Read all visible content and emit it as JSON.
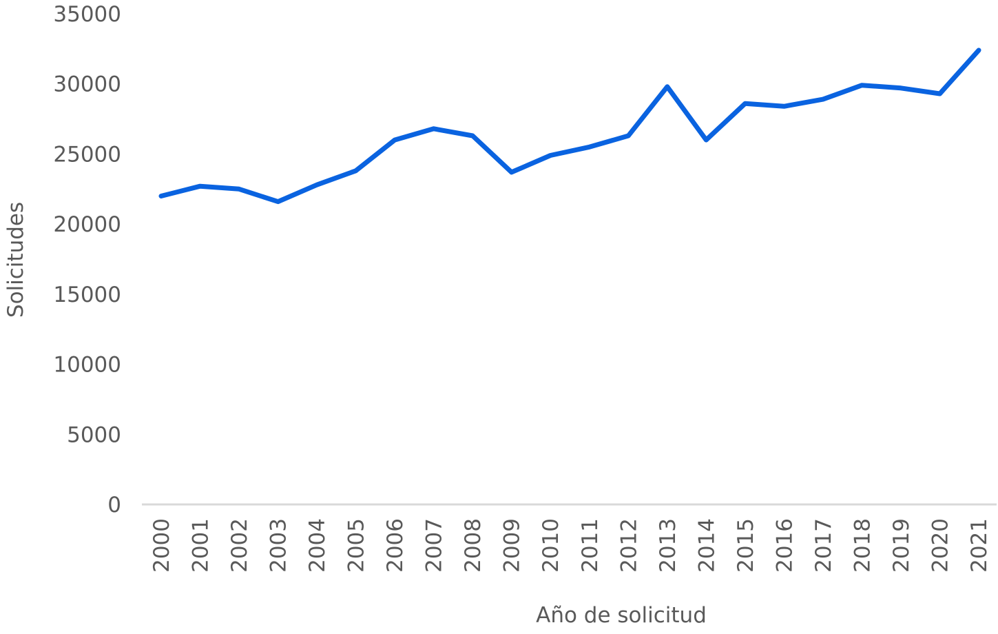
{
  "chart_data": {
    "type": "line",
    "xlabel": "Año de solicitud",
    "ylabel": "Solicitudes",
    "ylim": [
      0,
      35000
    ],
    "yticks": [
      0,
      5000,
      10000,
      15000,
      20000,
      25000,
      30000,
      35000
    ],
    "grid": false,
    "legend": "none",
    "categories": [
      "2000",
      "2001",
      "2002",
      "2003",
      "2004",
      "2005",
      "2006",
      "2007",
      "2008",
      "2009",
      "2010",
      "2011",
      "2012",
      "2013",
      "2014",
      "2015",
      "2016",
      "2017",
      "2018",
      "2019",
      "2020",
      "2021"
    ],
    "series": [
      {
        "values": [
          22000,
          22700,
          22500,
          21600,
          22800,
          23800,
          26000,
          26800,
          26300,
          23700,
          24900,
          25500,
          26300,
          29800,
          26000,
          28600,
          28400,
          28900,
          29900,
          29700,
          29300,
          32400
        ],
        "color": "#0a63e0"
      }
    ],
    "axis_line_color": "#d9d9d9"
  }
}
